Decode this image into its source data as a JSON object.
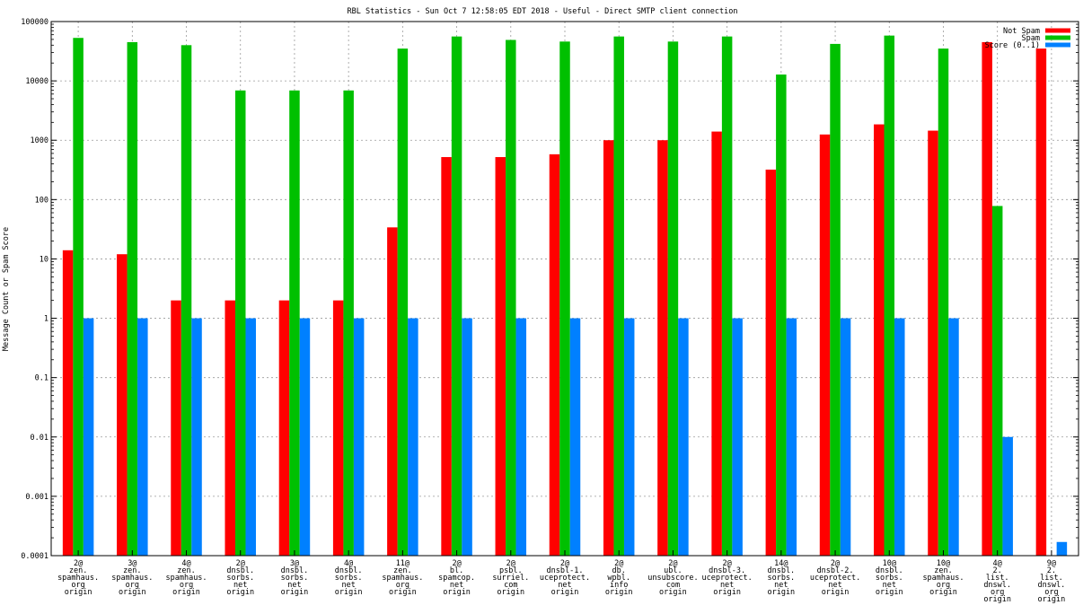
{
  "chart_data": {
    "type": "bar",
    "title": "RBL Statistics - Sun Oct  7 12:58:05 EDT 2018 - Useful - Direct SMTP client connection",
    "ylabel": "Message Count or Spam Score",
    "xlabel": "",
    "yscale": "log",
    "ylim": [
      0.0001,
      100000
    ],
    "yticks": [
      "0.0001",
      "0.001",
      "0.01",
      "0.1",
      "1",
      "10",
      "100",
      "1000",
      "10000",
      "100000"
    ],
    "grid": true,
    "legend_position": "top-right",
    "categories": [
      [
        "2@",
        "zen.",
        "spamhaus.",
        "org",
        "origin"
      ],
      [
        "3@",
        "zen.",
        "spamhaus.",
        "org",
        "origin"
      ],
      [
        "4@",
        "zen.",
        "spamhaus.",
        "org",
        "origin"
      ],
      [
        "2@",
        "dnsbl.",
        "sorbs.",
        "net",
        "origin"
      ],
      [
        "3@",
        "dnsbl.",
        "sorbs.",
        "net",
        "origin"
      ],
      [
        "4@",
        "dnsbl.",
        "sorbs.",
        "net",
        "origin"
      ],
      [
        "11@",
        "zen.",
        "spamhaus.",
        "org",
        "origin"
      ],
      [
        "2@",
        "bl.",
        "spamcop.",
        "net",
        "origin"
      ],
      [
        "2@",
        "psbl.",
        "surriel.",
        "com",
        "origin"
      ],
      [
        "2@",
        "dnsbl-1.",
        "uceprotect.",
        "net",
        "origin"
      ],
      [
        "2@",
        "db.",
        "wpbl.",
        "info",
        "origin"
      ],
      [
        "2@",
        "ubl.",
        "unsubscore.",
        "com",
        "origin"
      ],
      [
        "2@",
        "dnsbl-3.",
        "uceprotect.",
        "net",
        "origin"
      ],
      [
        "14@",
        "dnsbl.",
        "sorbs.",
        "net",
        "origin"
      ],
      [
        "2@",
        "dnsbl-2.",
        "uceprotect.",
        "net",
        "origin"
      ],
      [
        "10@",
        "dnsbl.",
        "sorbs.",
        "net",
        "origin"
      ],
      [
        "10@",
        "zen.",
        "spamhaus.",
        "org",
        "origin"
      ],
      [
        "4@",
        "2.",
        "list.",
        "dnswl.",
        "org",
        "origin"
      ],
      [
        "9@",
        "2.",
        "list.",
        "dnswl.",
        "org",
        "origin"
      ]
    ],
    "series": [
      {
        "name": "Not Spam",
        "color": "#ff0000",
        "values": [
          14,
          12,
          2,
          2,
          2,
          2,
          34,
          520,
          520,
          580,
          1000,
          1000,
          1400,
          320,
          1250,
          1850,
          1450,
          45000,
          35000
        ]
      },
      {
        "name": "Spam",
        "color": "#00c000",
        "values": [
          53000,
          45000,
          40000,
          6900,
          6900,
          6900,
          35000,
          56000,
          49000,
          46000,
          56000,
          46000,
          56000,
          12800,
          42000,
          58000,
          35000,
          78,
          null
        ]
      },
      {
        "name": "Score (0..1)",
        "color": "#0080ff",
        "values": [
          1,
          1,
          1,
          1,
          1,
          1,
          1,
          1,
          1,
          1,
          1,
          1,
          1,
          1,
          1,
          1,
          1,
          0.01,
          0.00017
        ]
      }
    ]
  }
}
